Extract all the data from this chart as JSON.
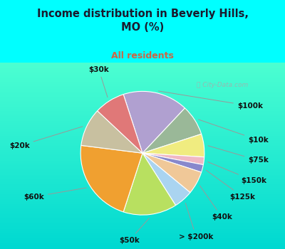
{
  "title": "Income distribution in Beverly Hills,\nMO (%)",
  "subtitle": "All residents",
  "title_color": "#1a1a2e",
  "subtitle_color": "#cc6644",
  "background_color": "#00ffff",
  "chart_bg_top": "#e8f5f0",
  "chart_bg_bottom": "#c8e8d8",
  "watermark": "ⓘ City-Data.com",
  "labels": [
    "$100k",
    "$10k",
    "$75k",
    "$150k",
    "$125k",
    "$40k",
    "> $200k",
    "$50k",
    "$60k",
    "$20k",
    "$30k"
  ],
  "values": [
    17,
    8,
    6,
    2,
    2,
    6,
    5,
    14,
    22,
    10,
    8
  ],
  "colors": [
    "#b0a0d0",
    "#9ab898",
    "#f0ec80",
    "#f0b8c4",
    "#8888cc",
    "#f0c898",
    "#aad4f0",
    "#b8e060",
    "#f0a030",
    "#c8c0a0",
    "#e07878"
  ],
  "startangle": 90,
  "figsize": [
    4.0,
    3.5
  ],
  "dpi": 100
}
